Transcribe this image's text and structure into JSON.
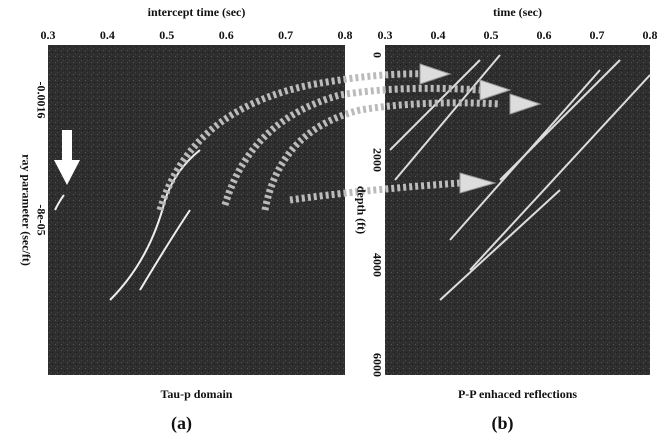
{
  "panels": [
    {
      "x_axis": {
        "label": "intercept time (sec)",
        "ticks": [
          "0.3",
          "0.4",
          "0.5",
          "0.6",
          "0.7",
          "0.8"
        ]
      },
      "y_axis": {
        "label": "ray parameter (sec/ft)",
        "ticks": [
          "-0.0016",
          "-8e-05"
        ]
      },
      "caption": "Tau-p domain",
      "tag": "(a)"
    },
    {
      "x_axis": {
        "label": "time (sec)",
        "ticks": [
          "0.3",
          "0.4",
          "0.5",
          "0.6",
          "0.7",
          "0.8"
        ]
      },
      "y_axis": {
        "label": "depth (ft)",
        "ticks": [
          "0",
          "2000",
          "4000",
          "6000"
        ]
      },
      "caption": "P-P enhaced reflections",
      "tag": "(b)"
    }
  ]
}
